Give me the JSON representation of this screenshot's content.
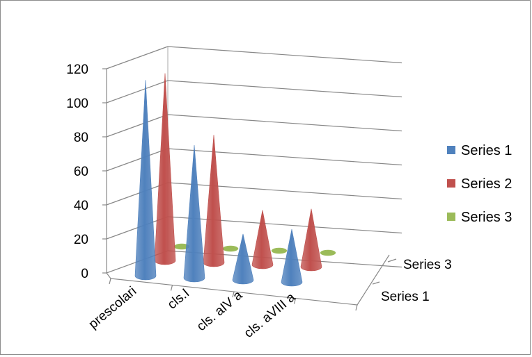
{
  "chart_data": {
    "type": "bar",
    "shape": "3d-cone",
    "categories": [
      "prescolari",
      "cls.I",
      "cls. aIV a",
      "cls. aVIII a"
    ],
    "series": [
      {
        "name": "Series 1",
        "color": "#4f81bd",
        "values": [
          115,
          78,
          27,
          31
        ]
      },
      {
        "name": "Series 2",
        "color": "#c0504d",
        "values": [
          110,
          75,
          32,
          34
        ]
      },
      {
        "name": "Series 3",
        "color": "#9bbb59",
        "values": [
          0,
          0,
          0,
          0
        ]
      }
    ],
    "depth_labels": [
      "Series 3",
      "Series 1"
    ],
    "yticks": [
      0,
      20,
      40,
      60,
      80,
      100,
      120
    ],
    "ylim": [
      0,
      120
    ],
    "grid": true,
    "legend": "right",
    "title": "",
    "xlabel": "",
    "ylabel": ""
  }
}
